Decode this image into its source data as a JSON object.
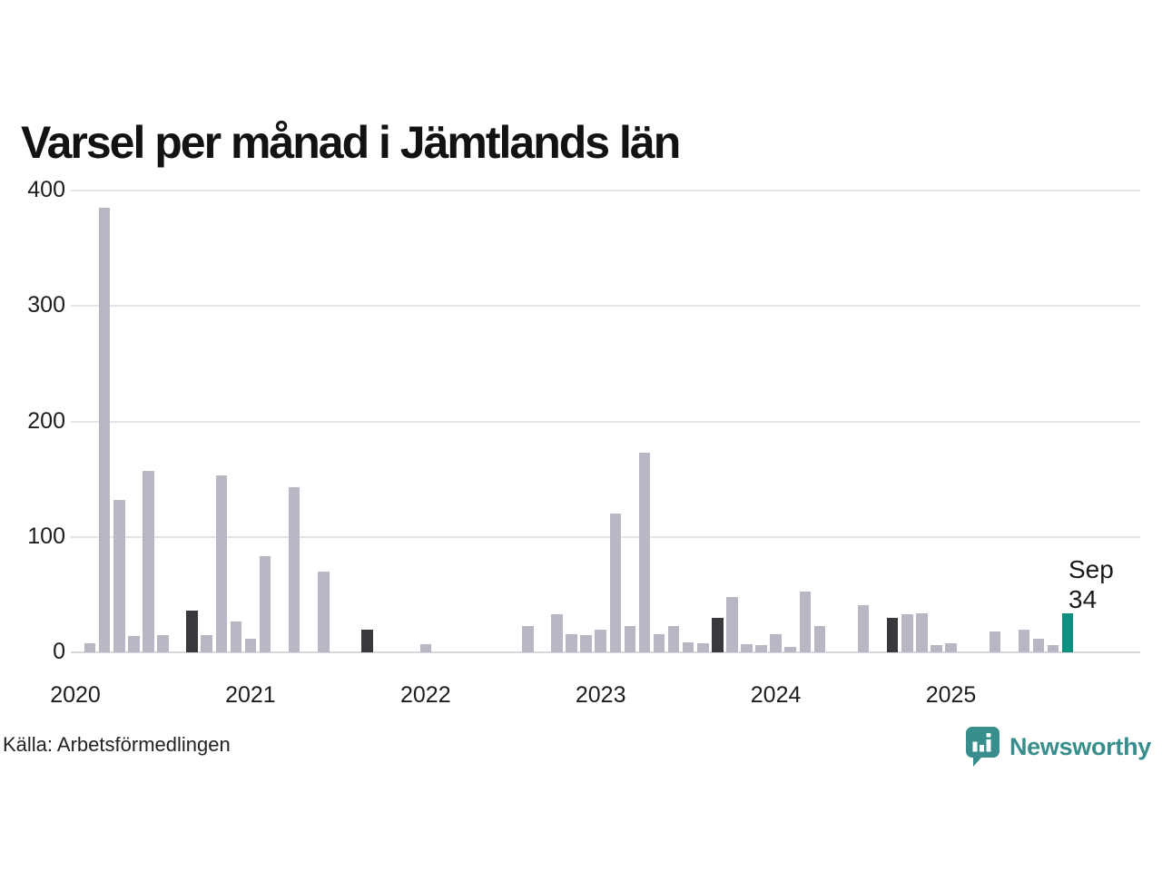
{
  "title": "Varsel per månad i Jämtlands län",
  "source": "Källa: Arbetsförmedlingen",
  "annotation": {
    "month_label": "Sep",
    "value_label": "34"
  },
  "logo": {
    "name": "Newsworthy"
  },
  "colors": {
    "bar_default": "#bab6c4",
    "bar_september": "#39383c",
    "bar_current": "#0e9080",
    "gridline": "#e4e3e7",
    "baseline": "#d8d7db",
    "text": "#1a1a1a",
    "logo_teal": "#378e8c"
  },
  "chart_data": {
    "type": "bar",
    "title": "Varsel per månad i Jämtlands län",
    "x_start": "2020-01",
    "x_end": "2025-09",
    "values": [
      0,
      8,
      385,
      132,
      14,
      157,
      15,
      0,
      36,
      15,
      153,
      27,
      12,
      83,
      0,
      143,
      0,
      70,
      0,
      0,
      20,
      0,
      0,
      0,
      7,
      0,
      0,
      0,
      0,
      0,
      0,
      23,
      0,
      33,
      16,
      15,
      20,
      120,
      23,
      173,
      16,
      23,
      9,
      8,
      30,
      48,
      7,
      6,
      16,
      5,
      53,
      23,
      0,
      0,
      41,
      0,
      30,
      33,
      34,
      6,
      8,
      0,
      0,
      18,
      0,
      20,
      12,
      6,
      34
    ],
    "ylim": [
      0,
      400
    ],
    "yticks": [
      0,
      100,
      200,
      300,
      400
    ],
    "year_labels": [
      "2020",
      "2021",
      "2022",
      "2023",
      "2024",
      "2025"
    ],
    "highlight_september_indices": [
      8,
      20,
      32,
      44,
      56
    ],
    "current_index": 68,
    "annotated_point": {
      "month": "Sep",
      "year": "2025",
      "value": 34
    },
    "grid": "horizontal",
    "legend": "none"
  }
}
